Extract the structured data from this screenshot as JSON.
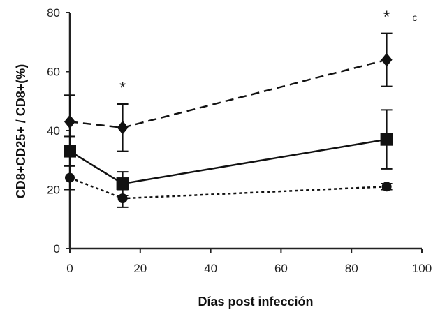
{
  "chart_data": {
    "type": "line",
    "title": "",
    "xlabel": "Días post infección",
    "ylabel": "CD8+CD25+ / CD8+(%)",
    "xlim": [
      0,
      100
    ],
    "ylim": [
      0,
      80
    ],
    "x_ticks": [
      "0",
      "20",
      "40",
      "60",
      "80",
      "100"
    ],
    "y_ticks": [
      "0",
      "20",
      "40",
      "60",
      "80"
    ],
    "grid": false,
    "legend": "none",
    "series": [
      {
        "marker": "diamond",
        "line_style": "dashed",
        "x": [
          0,
          15,
          90
        ],
        "y": [
          43,
          41,
          64
        ],
        "error": [
          9,
          8,
          9
        ]
      },
      {
        "marker": "square",
        "line_style": "solid",
        "x": [
          0,
          15,
          90
        ],
        "y": [
          33,
          22,
          37
        ],
        "error": [
          5,
          4,
          10
        ]
      },
      {
        "marker": "circle",
        "line_style": "dotted",
        "x": [
          0,
          15,
          90
        ],
        "y": [
          24,
          17,
          21
        ],
        "error": [
          4,
          3,
          1
        ]
      }
    ],
    "annotations": [
      {
        "text": "*",
        "x": 15,
        "y": 56
      },
      {
        "text": "*",
        "x": 90,
        "y": 80
      },
      {
        "text": "c",
        "x": 98,
        "y": 79
      }
    ]
  }
}
